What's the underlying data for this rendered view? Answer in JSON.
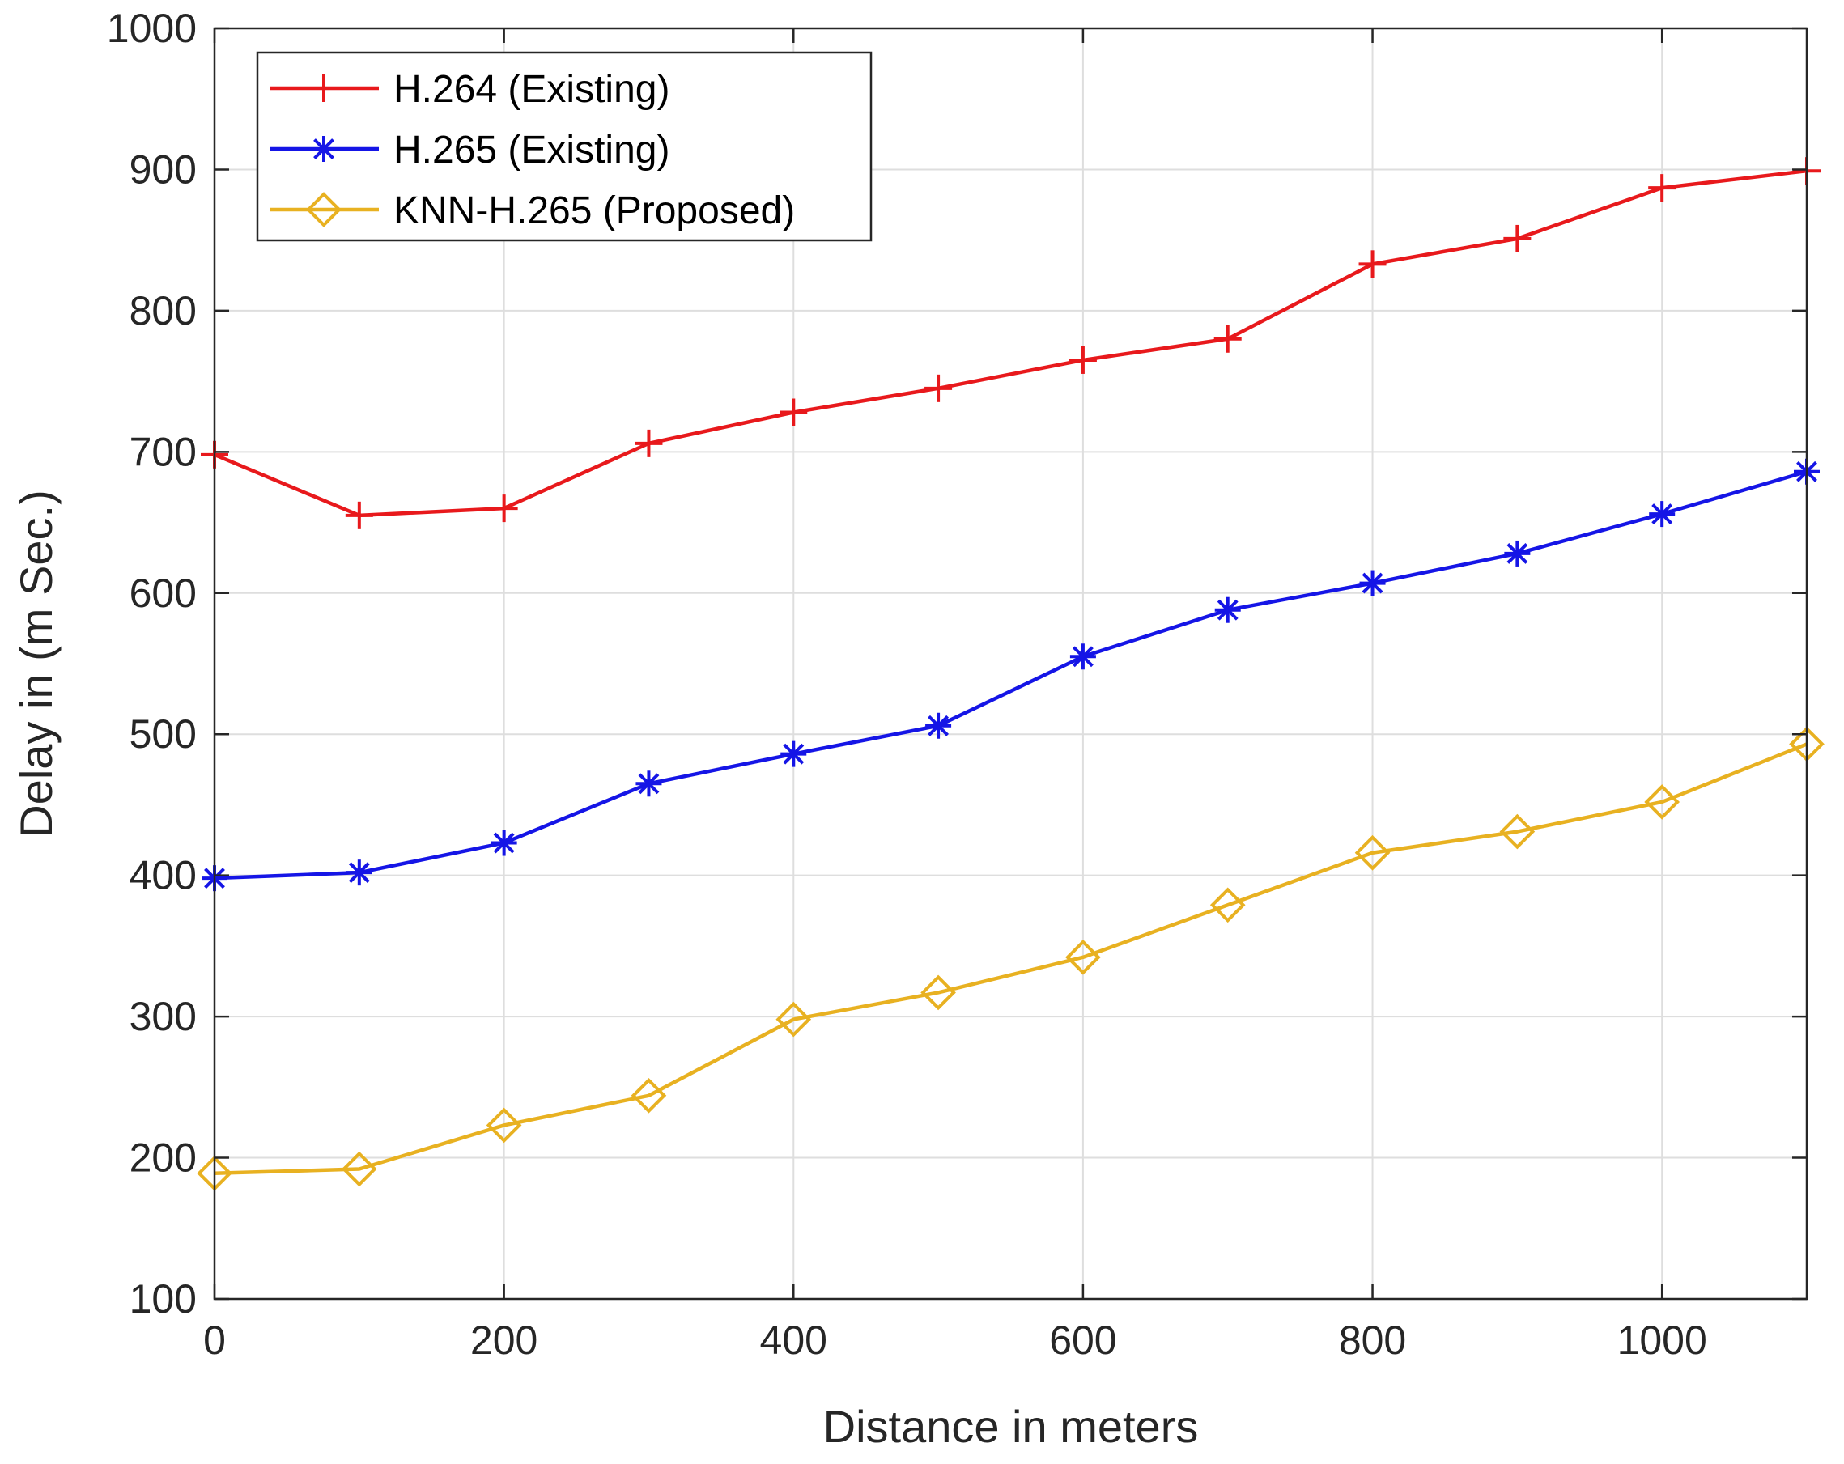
{
  "chart_data": {
    "type": "line",
    "title": "",
    "xlabel": "Distance in meters",
    "ylabel": "Delay in (m Sec.)",
    "xlim": [
      0,
      1100
    ],
    "ylim": [
      100,
      1000
    ],
    "xticks": [
      0,
      200,
      400,
      600,
      800,
      1000
    ],
    "yticks": [
      100,
      200,
      300,
      400,
      500,
      600,
      700,
      800,
      900,
      1000
    ],
    "xtick_labels": [
      "0",
      "200",
      "400",
      "600",
      "800",
      "1000"
    ],
    "ytick_labels": [
      "100",
      "200",
      "300",
      "400",
      "500",
      "600",
      "700",
      "800",
      "900",
      "1000"
    ],
    "grid": true,
    "legend_position": "top-left",
    "x": [
      0,
      100,
      200,
      300,
      400,
      500,
      600,
      700,
      800,
      900,
      1000,
      1100
    ],
    "series": [
      {
        "name": "H.264 (Existing)",
        "color": "#e8191c",
        "marker": "plus",
        "values": [
          698,
          655,
          660,
          706,
          728,
          745,
          765,
          780,
          833,
          851,
          887,
          899
        ]
      },
      {
        "name": "H.265 (Existing)",
        "color": "#1515e6",
        "marker": "asterisk",
        "values": [
          398,
          402,
          423,
          465,
          486,
          506,
          555,
          588,
          607,
          628,
          656,
          686
        ]
      },
      {
        "name": "KNN-H.265 (Proposed)",
        "color": "#e8b121",
        "marker": "diamond",
        "values": [
          189,
          192,
          223,
          244,
          298,
          317,
          342,
          379,
          416,
          431,
          452,
          493
        ]
      }
    ]
  }
}
